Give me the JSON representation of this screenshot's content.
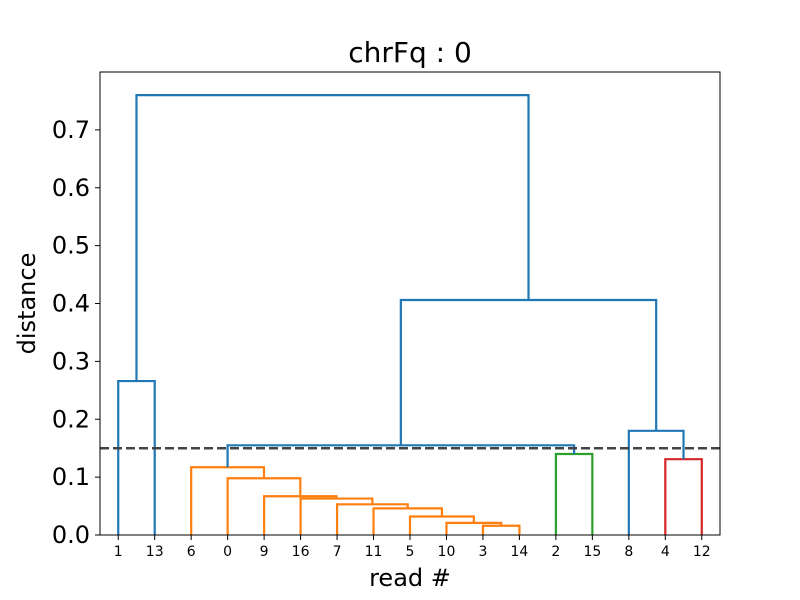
{
  "chart_data": {
    "type": "dendrogram",
    "title": "chrFq : 0",
    "xlabel": "read #",
    "ylabel": "distance",
    "ylim": [
      0,
      0.8
    ],
    "yticks": [
      0.0,
      0.1,
      0.2,
      0.3,
      0.4,
      0.5,
      0.6,
      0.7
    ],
    "ytick_labels": [
      "0.0",
      "0.1",
      "0.2",
      "0.3",
      "0.4",
      "0.5",
      "0.6",
      "0.7"
    ],
    "leaves": [
      "1",
      "13",
      "6",
      "0",
      "9",
      "16",
      "7",
      "11",
      "5",
      "10",
      "3",
      "14",
      "2",
      "15",
      "8",
      "4",
      "12"
    ],
    "threshold": 0.15,
    "colors": {
      "blue": "#1f77b4",
      "orange": "#ff7f0e",
      "green": "#2ca02c",
      "red": "#d62728",
      "threshold": "#444444"
    },
    "merges": [
      {
        "left": "leaf:10",
        "right": "leaf:11",
        "height": 0.016,
        "color": "orange"
      },
      {
        "left": "leaf:9",
        "right": "m0",
        "height": 0.021,
        "color": "orange"
      },
      {
        "left": "leaf:8",
        "right": "m1",
        "height": 0.032,
        "color": "orange"
      },
      {
        "left": "leaf:7",
        "right": "m2",
        "height": 0.046,
        "color": "orange"
      },
      {
        "left": "leaf:6",
        "right": "m3",
        "height": 0.053,
        "color": "orange"
      },
      {
        "left": "leaf:5",
        "right": "m4",
        "height": 0.063,
        "color": "orange"
      },
      {
        "left": "leaf:4",
        "right": "m5",
        "height": 0.067,
        "color": "orange"
      },
      {
        "left": "leaf:3",
        "right": "m6",
        "height": 0.098,
        "color": "orange"
      },
      {
        "left": "leaf:2",
        "right": "m7",
        "height": 0.117,
        "color": "orange"
      },
      {
        "left": "leaf:15",
        "right": "leaf:16",
        "height": 0.131,
        "color": "red"
      },
      {
        "left": "leaf:12",
        "right": "leaf:13",
        "height": 0.14,
        "color": "green"
      },
      {
        "left": "m8",
        "right": "m10",
        "height": 0.155,
        "color": "blue"
      },
      {
        "left": "leaf:14",
        "right": "m9",
        "height": 0.18,
        "color": "blue"
      },
      {
        "left": "leaf:0",
        "right": "leaf:1",
        "height": 0.266,
        "color": "blue"
      },
      {
        "left": "m11",
        "right": "m12",
        "height": 0.406,
        "color": "blue"
      },
      {
        "left": "m13",
        "right": "m14",
        "height": 0.76,
        "color": "blue"
      }
    ]
  }
}
